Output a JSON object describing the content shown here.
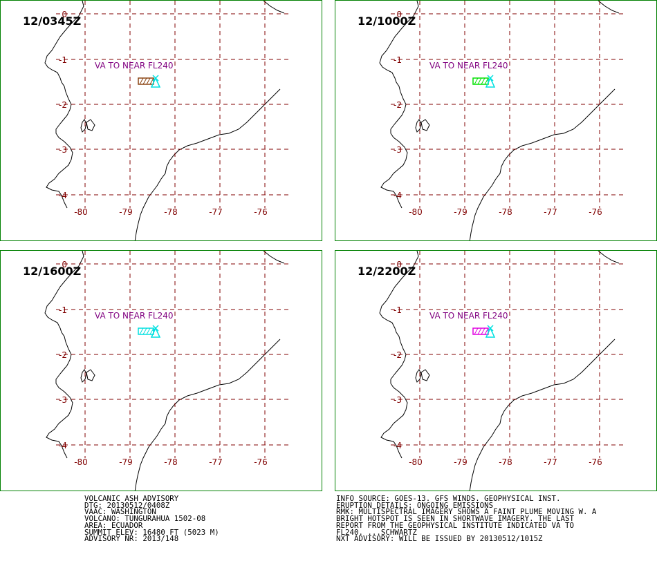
{
  "panels": [
    {
      "time": "12/0345Z",
      "label": "VA TO NEAR FL240",
      "plume_color": "#8b4513"
    },
    {
      "time": "12/1000Z",
      "label": "VA TO NEAR FL240",
      "plume_color": "#00e000"
    },
    {
      "time": "12/1600Z",
      "label": "VA TO NEAR FL240",
      "plume_color": "#00e0e0"
    },
    {
      "time": "12/2200Z",
      "label": "VA TO NEAR FL240",
      "plume_color": "#e000e0"
    }
  ],
  "map": {
    "lat_labels": [
      "0",
      "-1",
      "-2",
      "-3",
      "-4"
    ],
    "lon_labels": [
      "-80",
      "-79",
      "-78",
      "-77",
      "-76"
    ],
    "grid_color": "#800000",
    "label_color": "#800080",
    "volcano_symbol_color": "#00e0e0",
    "coast_color": "#000000",
    "border_color": "#008000"
  },
  "advisory_left": [
    "VOLCANIC ASH ADVISORY",
    "DTG: 20130512/0408Z",
    "VAAC: WASHINGTON",
    "VOLCANO: TUNGURAHUA 1502-08",
    "AREA: ECUADOR",
    "SUMMIT ELEV: 16480 FT (5023 M)",
    "ADVISORY NR: 2013/148"
  ],
  "advisory_right": [
    "INFO SOURCE: GOES-13. GFS WINDS. GEOPHYSICAL INST.",
    "ERUPTION DETAILS: ONGOING EMISSIONS",
    "RMK: MULTISPECTRAL IMAGERY SHOWS A FAINT PLUME MOVING W. A",
    "BRIGHT HOTSPOT IS SEEN IN SHORTWAVE IMAGERY. THE LAST",
    "REPORT FROM THE GEOPHYSICAL INSTITUTE INDICATED VA TO",
    "FL240. ...SCHWARTZ",
    "NXT ADVISORY: WILL BE ISSUED BY 20130512/1015Z"
  ]
}
